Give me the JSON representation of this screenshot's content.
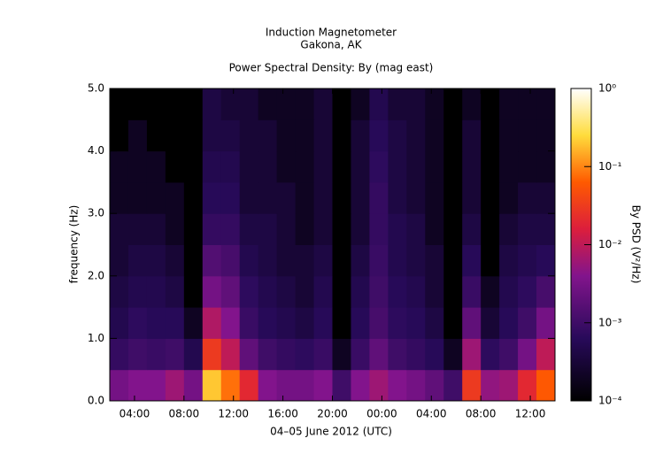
{
  "chart_data": {
    "type": "heatmap",
    "title": "Induction Magnetometer",
    "subtitle": "Gakona, AK",
    "plot_title": "Power Spectral Density: By (mag east)",
    "x_label": "04–05 June 2012 (UTC)",
    "y_label": "frequency (Hz)",
    "colorbar_label": "By PSD (V²/Hz)",
    "xlim": [
      2,
      38
    ],
    "xticks": [
      {
        "value": 4,
        "label": "04:00"
      },
      {
        "value": 8,
        "label": "08:00"
      },
      {
        "value": 12,
        "label": "12:00"
      },
      {
        "value": 16,
        "label": "16:00"
      },
      {
        "value": 20,
        "label": "20:00"
      },
      {
        "value": 24,
        "label": "00:00"
      },
      {
        "value": 28,
        "label": "04:00"
      },
      {
        "value": 32,
        "label": "08:00"
      },
      {
        "value": 36,
        "label": "12:00"
      }
    ],
    "ylim": [
      0,
      5
    ],
    "yticks": [
      {
        "value": 0,
        "label": "0.0"
      },
      {
        "value": 1,
        "label": "1.0"
      },
      {
        "value": 2,
        "label": "2.0"
      },
      {
        "value": 3,
        "label": "3.0"
      },
      {
        "value": 4,
        "label": "4.0"
      },
      {
        "value": 5,
        "label": "5.0"
      }
    ],
    "clim": [
      0.0001,
      1
    ],
    "color_scale": "log",
    "cticks": [
      {
        "value": 0.0001,
        "label": "10⁻⁴"
      },
      {
        "value": 0.001,
        "label": "10⁻³"
      },
      {
        "value": 0.01,
        "label": "10⁻²"
      },
      {
        "value": 0.1,
        "label": "10⁻¹"
      },
      {
        "value": 1,
        "label": "10⁰"
      }
    ],
    "x_bins": [
      2,
      3.5,
      5,
      6.5,
      8,
      9.5,
      11,
      12.5,
      14,
      15.5,
      17,
      18.5,
      20,
      21.5,
      23,
      24.5,
      26,
      27.5,
      29,
      30.5,
      32,
      33.5,
      35,
      36.5,
      38
    ],
    "y_bins": [
      0,
      0.5,
      1,
      1.5,
      2,
      2.5,
      3,
      3.5,
      4,
      4.5,
      5
    ],
    "z": [
      [
        0.003,
        0.004,
        0.004,
        0.006,
        0.003,
        0.2,
        0.08,
        0.02,
        0.004,
        0.003,
        0.003,
        0.004,
        0.001,
        0.004,
        0.006,
        0.004,
        0.003,
        0.002,
        0.001,
        0.03,
        0.005,
        0.006,
        0.02,
        0.06
      ],
      [
        0.0008,
        0.001,
        0.0009,
        0.001,
        0.0005,
        0.03,
        0.01,
        0.002,
        0.001,
        0.0008,
        0.0007,
        0.0009,
        0.0002,
        0.0009,
        0.002,
        0.001,
        0.0008,
        0.0006,
        0.0002,
        0.006,
        0.0007,
        0.001,
        0.003,
        0.01
      ],
      [
        0.0005,
        0.0007,
        0.0006,
        0.0006,
        0.0002,
        0.008,
        0.004,
        0.0009,
        0.0006,
        0.0005,
        0.0004,
        0.0006,
        0.0001,
        0.0006,
        0.0012,
        0.0007,
        0.0006,
        0.0004,
        0.0001,
        0.002,
        0.0003,
        0.0006,
        0.001,
        0.003
      ],
      [
        0.0004,
        0.0005,
        0.0005,
        0.0004,
        0.0001,
        0.003,
        0.002,
        0.0007,
        0.0005,
        0.0004,
        0.0003,
        0.0005,
        0.0001,
        0.0005,
        0.001,
        0.0006,
        0.0005,
        0.0003,
        0.0001,
        0.0009,
        0.0002,
        0.0005,
        0.0007,
        0.0012
      ],
      [
        0.0003,
        0.0004,
        0.0004,
        0.0003,
        0.0001,
        0.0015,
        0.0012,
        0.0005,
        0.0004,
        0.0003,
        0.0003,
        0.0004,
        0.0001,
        0.0004,
        0.0009,
        0.0005,
        0.0004,
        0.0003,
        0.0001,
        0.0006,
        0.0001,
        0.0004,
        0.0005,
        0.0006
      ],
      [
        0.0003,
        0.0003,
        0.0003,
        0.0002,
        0.0001,
        0.0008,
        0.0008,
        0.0004,
        0.0004,
        0.0003,
        0.0002,
        0.0003,
        0.0001,
        0.0003,
        0.0008,
        0.0005,
        0.0004,
        0.0002,
        0.0001,
        0.0004,
        0.0001,
        0.0003,
        0.0004,
        0.0004
      ],
      [
        0.0002,
        0.0002,
        0.0002,
        0.0002,
        0.0001,
        0.0006,
        0.0006,
        0.0003,
        0.0003,
        0.0003,
        0.0002,
        0.0003,
        0.0001,
        0.0003,
        0.0008,
        0.0004,
        0.0003,
        0.0002,
        0.0001,
        0.0003,
        0.0001,
        0.0002,
        0.0003,
        0.0003
      ],
      [
        0.0002,
        0.0002,
        0.0002,
        0.0001,
        0.0001,
        0.0005,
        0.0005,
        0.0003,
        0.0003,
        0.0002,
        0.0002,
        0.0003,
        0.0001,
        0.0003,
        0.0007,
        0.0004,
        0.0003,
        0.0002,
        0.0001,
        0.0003,
        0.0001,
        0.0002,
        0.0002,
        0.0002
      ],
      [
        0.0001,
        0.0002,
        0.0001,
        0.0001,
        0.0001,
        0.0004,
        0.0004,
        0.0003,
        0.0003,
        0.0002,
        0.0002,
        0.0003,
        0.0001,
        0.0003,
        0.0006,
        0.0004,
        0.0003,
        0.0002,
        0.0001,
        0.0003,
        0.0001,
        0.0002,
        0.0002,
        0.0002
      ],
      [
        0.0001,
        0.0001,
        0.0001,
        0.0001,
        0.0001,
        0.0004,
        0.0003,
        0.0003,
        0.0002,
        0.0002,
        0.0002,
        0.0003,
        0.0001,
        0.0002,
        0.0005,
        0.0003,
        0.0003,
        0.0002,
        0.0001,
        0.0002,
        0.0001,
        0.0002,
        0.0002,
        0.0002
      ]
    ]
  }
}
